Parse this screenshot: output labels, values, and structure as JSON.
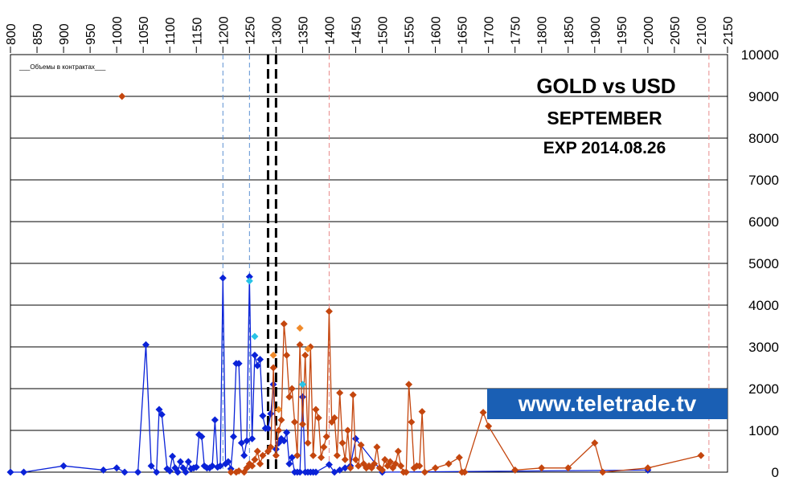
{
  "chart_data": {
    "type": "scatter",
    "title": "GOLD vs USD",
    "subtitle": "SEPTEMBER",
    "expiry": "EXP 2014.08.26",
    "legend_label": "___Объемы в контрактах___",
    "watermark": "www.teletrade.tv",
    "x_ticks": [
      "800",
      "850",
      "900",
      "950",
      "1000",
      "1050",
      "1100",
      "1150",
      "1200",
      "1250",
      "1300",
      "1350",
      "1400",
      "1450",
      "1500",
      "1550",
      "1600",
      "1650",
      "1700",
      "1750",
      "1800",
      "1850",
      "1900",
      "1950",
      "2000",
      "2050",
      "2100",
      "2150"
    ],
    "y_ticks": [
      "0",
      "1000",
      "2000",
      "3000",
      "4000",
      "5000",
      "6000",
      "7000",
      "8000",
      "9000",
      "10000"
    ],
    "xlim": [
      800,
      2150
    ],
    "ylim": [
      0,
      10000
    ],
    "grid": "horizontal",
    "vlines": [
      {
        "x": 1200,
        "style": "dashed",
        "color": "#5b8fd1"
      },
      {
        "x": 1250,
        "style": "dashed",
        "color": "#5b8fd1"
      },
      {
        "x": 1285,
        "style": "dashed-bold",
        "color": "#000000"
      },
      {
        "x": 1300,
        "style": "dashed-bold",
        "color": "#000000"
      },
      {
        "x": 1400,
        "style": "dashed",
        "color": "#e88a8a"
      },
      {
        "x": 2115,
        "style": "dashed",
        "color": "#e88a8a"
      }
    ],
    "colors": {
      "calls": "#0a22d8",
      "puts": "#c4460e",
      "calls_light": "#29c3e6",
      "puts_light": "#f08a2a",
      "watermark_bg": "#1a5fb4"
    },
    "series": [
      {
        "key": "calls",
        "points": [
          [
            800,
            0
          ],
          [
            825,
            0
          ],
          [
            900,
            150
          ],
          [
            975,
            50
          ],
          [
            1000,
            100
          ],
          [
            1015,
            0
          ],
          [
            1040,
            0
          ],
          [
            1055,
            3050
          ],
          [
            1065,
            150
          ],
          [
            1075,
            0
          ],
          [
            1080,
            1500
          ],
          [
            1085,
            1380
          ],
          [
            1095,
            80
          ],
          [
            1100,
            30
          ],
          [
            1105,
            380
          ],
          [
            1110,
            100
          ],
          [
            1115,
            0
          ],
          [
            1120,
            250
          ],
          [
            1125,
            100
          ],
          [
            1130,
            0
          ],
          [
            1135,
            250
          ],
          [
            1140,
            80
          ],
          [
            1145,
            100
          ],
          [
            1150,
            120
          ],
          [
            1155,
            900
          ],
          [
            1160,
            850
          ],
          [
            1165,
            150
          ],
          [
            1170,
            100
          ],
          [
            1175,
            100
          ],
          [
            1180,
            150
          ],
          [
            1185,
            1250
          ],
          [
            1190,
            120
          ],
          [
            1195,
            150
          ],
          [
            1200,
            4650
          ],
          [
            1205,
            200
          ],
          [
            1210,
            250
          ],
          [
            1215,
            80
          ],
          [
            1220,
            850
          ],
          [
            1225,
            2600
          ],
          [
            1230,
            2600
          ],
          [
            1235,
            700
          ],
          [
            1240,
            400
          ],
          [
            1245,
            750
          ],
          [
            1250,
            4680
          ],
          [
            1255,
            800
          ],
          [
            1260,
            2800
          ],
          [
            1265,
            2550
          ],
          [
            1270,
            2700
          ],
          [
            1275,
            1350
          ],
          [
            1280,
            1050
          ],
          [
            1285,
            1050
          ],
          [
            1290,
            1400
          ],
          [
            1295,
            2100
          ],
          [
            1300,
            550
          ],
          [
            1305,
            700
          ],
          [
            1310,
            800
          ],
          [
            1315,
            750
          ],
          [
            1320,
            950
          ],
          [
            1325,
            200
          ],
          [
            1330,
            350
          ],
          [
            1335,
            0
          ],
          [
            1340,
            0
          ],
          [
            1345,
            0
          ],
          [
            1350,
            1800
          ],
          [
            1355,
            0
          ],
          [
            1360,
            0
          ],
          [
            1365,
            0
          ],
          [
            1370,
            0
          ],
          [
            1375,
            0
          ],
          [
            1400,
            180
          ],
          [
            1410,
            0
          ],
          [
            1420,
            50
          ],
          [
            1430,
            100
          ],
          [
            1440,
            150
          ],
          [
            1450,
            800
          ],
          [
            1500,
            0
          ],
          [
            2000,
            50
          ]
        ]
      },
      {
        "key": "puts",
        "points": [
          [
            1010,
            9000
          ],
          [
            1215,
            0
          ],
          [
            1225,
            0
          ],
          [
            1230,
            30
          ],
          [
            1240,
            0
          ],
          [
            1245,
            100
          ],
          [
            1250,
            200
          ],
          [
            1255,
            150
          ],
          [
            1260,
            300
          ],
          [
            1265,
            500
          ],
          [
            1270,
            200
          ],
          [
            1275,
            400
          ],
          [
            1285,
            500
          ],
          [
            1290,
            600
          ],
          [
            1295,
            2500
          ],
          [
            1300,
            400
          ],
          [
            1305,
            1000
          ],
          [
            1310,
            1250
          ],
          [
            1315,
            3550
          ],
          [
            1320,
            2800
          ],
          [
            1325,
            1800
          ],
          [
            1330,
            2000
          ],
          [
            1335,
            1200
          ],
          [
            1340,
            400
          ],
          [
            1345,
            3050
          ],
          [
            1350,
            1150
          ],
          [
            1355,
            2800
          ],
          [
            1360,
            700
          ],
          [
            1365,
            3000
          ],
          [
            1370,
            400
          ],
          [
            1375,
            1500
          ],
          [
            1380,
            1300
          ],
          [
            1385,
            350
          ],
          [
            1390,
            600
          ],
          [
            1395,
            850
          ],
          [
            1400,
            3850
          ],
          [
            1405,
            1200
          ],
          [
            1410,
            1300
          ],
          [
            1415,
            400
          ],
          [
            1420,
            1900
          ],
          [
            1425,
            700
          ],
          [
            1430,
            300
          ],
          [
            1435,
            1000
          ],
          [
            1440,
            100
          ],
          [
            1445,
            1850
          ],
          [
            1450,
            300
          ],
          [
            1455,
            150
          ],
          [
            1460,
            650
          ],
          [
            1465,
            200
          ],
          [
            1470,
            100
          ],
          [
            1475,
            150
          ],
          [
            1480,
            100
          ],
          [
            1485,
            200
          ],
          [
            1490,
            600
          ],
          [
            1495,
            100
          ],
          [
            1500,
            50
          ],
          [
            1505,
            300
          ],
          [
            1510,
            150
          ],
          [
            1515,
            250
          ],
          [
            1520,
            100
          ],
          [
            1525,
            200
          ],
          [
            1530,
            500
          ],
          [
            1535,
            150
          ],
          [
            1540,
            0
          ],
          [
            1545,
            0
          ],
          [
            1550,
            2100
          ],
          [
            1555,
            1200
          ],
          [
            1560,
            100
          ],
          [
            1565,
            150
          ],
          [
            1570,
            150
          ],
          [
            1575,
            1450
          ],
          [
            1580,
            0
          ],
          [
            1600,
            100
          ],
          [
            1625,
            200
          ],
          [
            1645,
            350
          ],
          [
            1650,
            0
          ],
          [
            1655,
            0
          ],
          [
            1690,
            1430
          ],
          [
            1700,
            1100
          ],
          [
            1750,
            50
          ],
          [
            1800,
            100
          ],
          [
            1850,
            100
          ],
          [
            1900,
            700
          ],
          [
            1915,
            0
          ],
          [
            2000,
            100
          ],
          [
            2100,
            400
          ]
        ]
      },
      {
        "key": "calls_light",
        "points": [
          [
            1250,
            4580
          ],
          [
            1260,
            3250
          ],
          [
            1350,
            2100
          ]
        ]
      },
      {
        "key": "puts_light",
        "points": [
          [
            1345,
            3450
          ],
          [
            1360,
            2950
          ],
          [
            1305,
            1500
          ],
          [
            1295,
            2800
          ]
        ]
      }
    ]
  }
}
